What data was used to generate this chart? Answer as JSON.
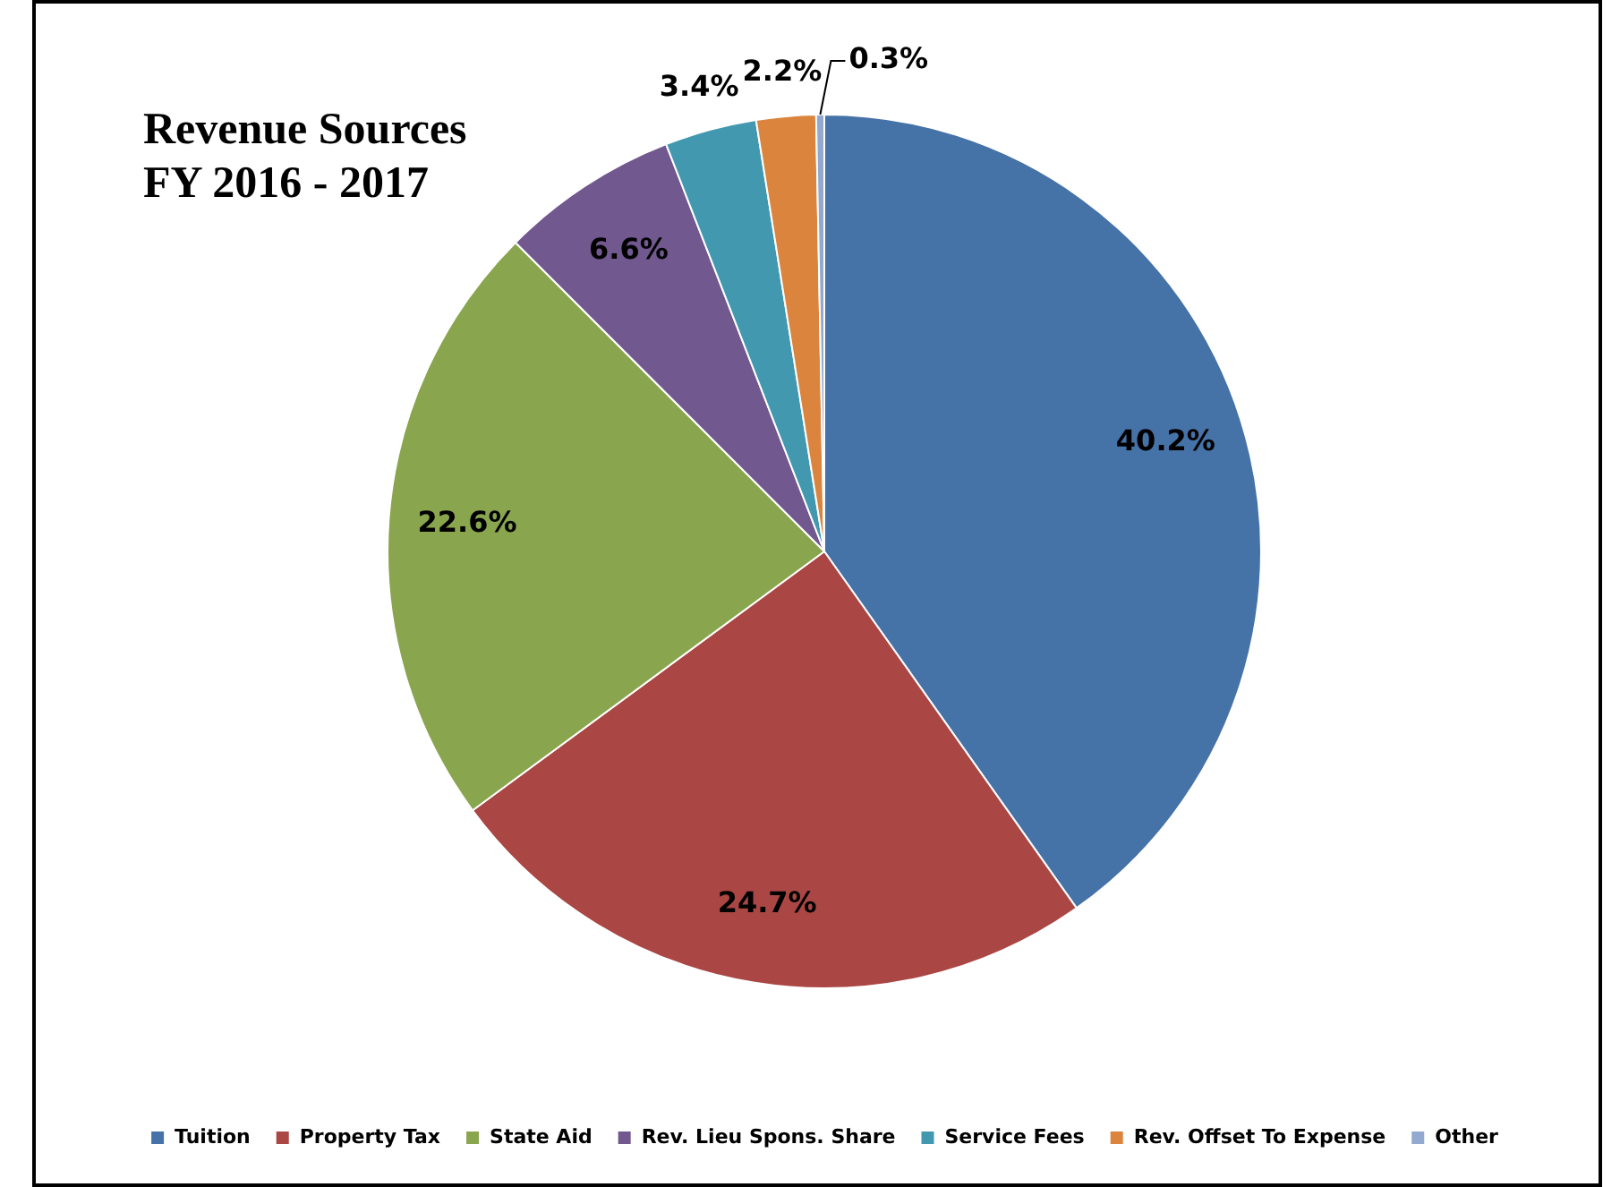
{
  "chart_data": {
    "type": "pie",
    "title": "Revenue Sources\nFY 2016 - 2017",
    "categories": [
      "Tuition",
      "Property Tax",
      "State Aid",
      "Rev. Lieu Spons. Share",
      "Service Fees",
      "Rev. Offset To Expense",
      "Other"
    ],
    "values": [
      40.2,
      24.7,
      22.6,
      6.6,
      3.4,
      2.2,
      0.3
    ],
    "colors": [
      "#4572a7",
      "#aa4643",
      "#89a54e",
      "#71588f",
      "#4198af",
      "#db843d",
      "#93a9cf"
    ],
    "value_labels": [
      "40.2%",
      "24.7%",
      "22.6%",
      "6.6%",
      "3.4%",
      "2.2%",
      "0.3%"
    ],
    "legend": "bottom"
  }
}
